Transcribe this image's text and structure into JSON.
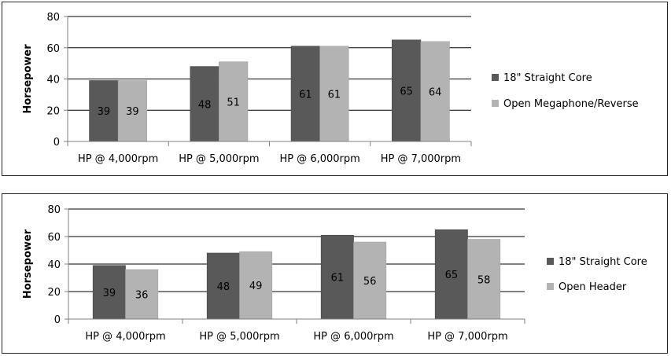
{
  "chart_data": [
    {
      "type": "bar",
      "ylabel": "Horsepower",
      "ylim": [
        0,
        80
      ],
      "yticks": [
        0,
        20,
        40,
        60,
        80
      ],
      "categories": [
        "HP @ 4,000rpm",
        "HP @ 5,000rpm",
        "HP @ 6,000rpm",
        "HP @ 7,000rpm"
      ],
      "series": [
        {
          "name": "18\" Straight Core",
          "values": [
            39,
            48,
            61,
            65
          ],
          "color": "#595959"
        },
        {
          "name": "Open Megaphone/Reverse",
          "values": [
            39,
            51,
            61,
            64
          ],
          "color": "#b3b3b3"
        }
      ],
      "data_labels": [
        [
          "39",
          "48",
          "61",
          "65"
        ],
        [
          "39",
          "51",
          "61",
          "64"
        ]
      ],
      "grid": true,
      "legend": "right"
    },
    {
      "type": "bar",
      "ylabel": "Horsepower",
      "ylim": [
        0,
        80
      ],
      "yticks": [
        0,
        20,
        40,
        60,
        80
      ],
      "categories": [
        "HP @ 4,000rpm",
        "HP @ 5,000rpm",
        "HP @ 6,000rpm",
        "HP @ 7,000rpm"
      ],
      "series": [
        {
          "name": "18\" Straight Core",
          "values": [
            39,
            48,
            61,
            65
          ],
          "color": "#595959"
        },
        {
          "name": "Open Header",
          "values": [
            36,
            49,
            56,
            58
          ],
          "color": "#b3b3b3"
        }
      ],
      "data_labels": [
        [
          "39",
          "48",
          "61",
          "65"
        ],
        [
          "36",
          "49",
          "56",
          "58"
        ]
      ],
      "grid": true,
      "legend": "right"
    }
  ]
}
